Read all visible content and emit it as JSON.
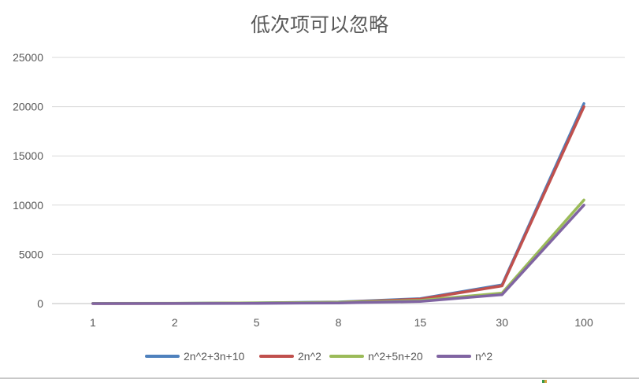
{
  "chart_data": {
    "type": "line",
    "title": "低次项可以忽略",
    "xlabel": "",
    "ylabel": "",
    "categories": [
      "1",
      "2",
      "5",
      "8",
      "15",
      "30",
      "100"
    ],
    "ylim": [
      0,
      25000
    ],
    "yticks": [
      0,
      5000,
      10000,
      15000,
      20000,
      25000
    ],
    "grid": true,
    "legend_position": "bottom",
    "series": [
      {
        "name": "2n^2+3n+10",
        "color": "#4F81BD",
        "values": [
          15,
          24,
          75,
          162,
          505,
          1900,
          20310
        ]
      },
      {
        "name": "2n^2",
        "color": "#C0504D",
        "values": [
          2,
          8,
          50,
          128,
          450,
          1800,
          20000
        ]
      },
      {
        "name": "n^2+5n+20",
        "color": "#9BBB59",
        "values": [
          26,
          34,
          70,
          124,
          320,
          1070,
          10520
        ]
      },
      {
        "name": "n^2",
        "color": "#8064A2",
        "values": [
          1,
          4,
          25,
          64,
          225,
          900,
          10000
        ]
      }
    ]
  }
}
